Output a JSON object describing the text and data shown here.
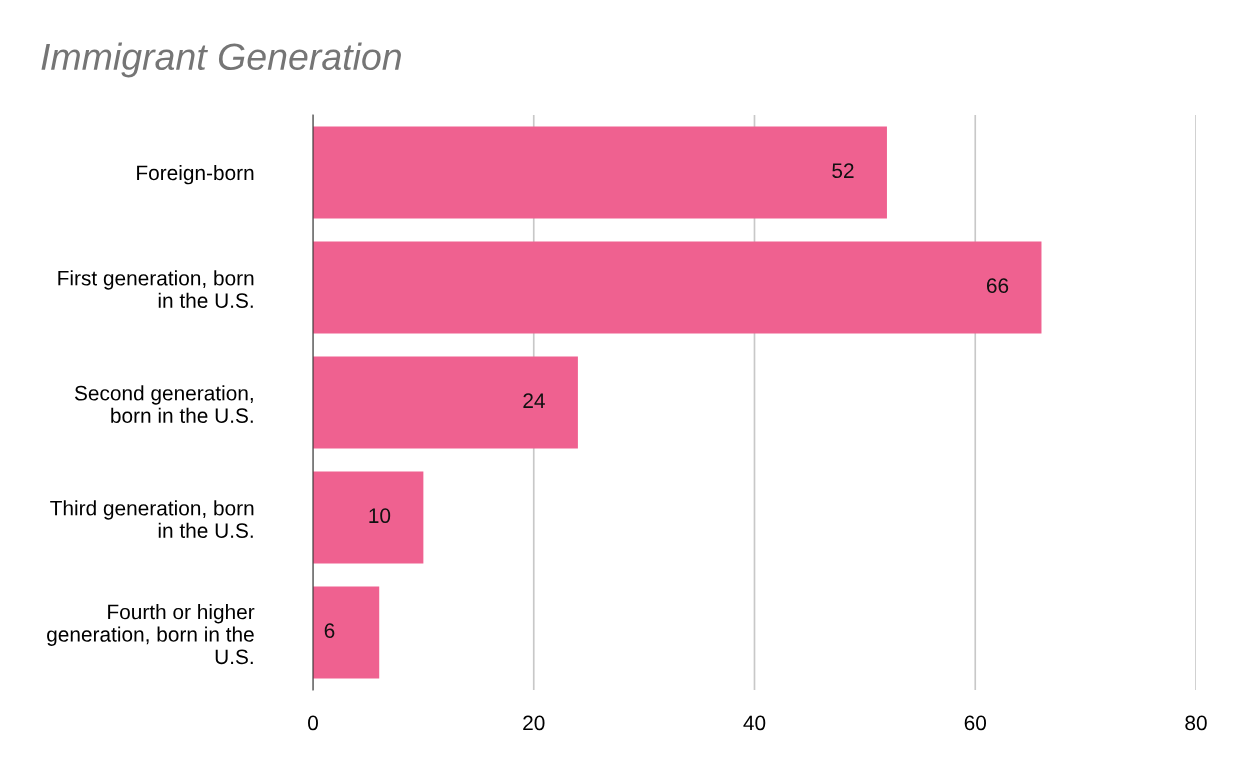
{
  "chart_data": {
    "type": "bar",
    "orientation": "horizontal",
    "title": "Immigrant Generation",
    "categories": [
      "Foreign-born",
      "First generation, born\nin the U.S.",
      "Second generation,\nborn in the U.S.",
      "Third generation, born\nin the U.S.",
      "Fourth or higher\ngeneration, born in the\nU.S."
    ],
    "values": [
      52,
      66,
      24,
      10,
      6
    ],
    "color": "#ef6190",
    "xlim": [
      0,
      80
    ],
    "xticks": [
      0,
      20,
      40,
      60,
      80
    ],
    "grid": "x",
    "data_labels": true
  }
}
